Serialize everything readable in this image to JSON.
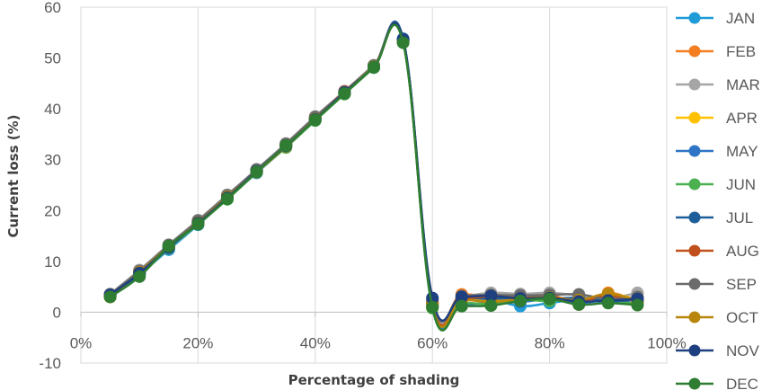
{
  "chart_data": {
    "type": "line",
    "xlabel": "Percentage of shading",
    "ylabel": "Current loss (%)",
    "xlim": [
      0,
      100
    ],
    "ylim": [
      -10,
      60
    ],
    "x_ticks": [
      "0%",
      "20%",
      "40%",
      "60%",
      "80%",
      "100%"
    ],
    "y_ticks": [
      "-10",
      "0",
      "10",
      "20",
      "30",
      "40",
      "50",
      "60"
    ],
    "grid": "vertical",
    "legend": "right",
    "smooth": true,
    "x": [
      5,
      10,
      15,
      20,
      25,
      30,
      35,
      40,
      45,
      50,
      55,
      60,
      65,
      70,
      75,
      80,
      85,
      90,
      95
    ],
    "series": [
      {
        "name": "JAN",
        "color": "#1f9bd7",
        "values": [
          3.5,
          7.5,
          12.3,
          17.2,
          22.3,
          27.5,
          32.6,
          37.8,
          43.0,
          48.3,
          53.6,
          1.0,
          2.2,
          2.5,
          1.2,
          1.8,
          2.5,
          2.0,
          2.6
        ]
      },
      {
        "name": "FEB",
        "color": "#f47d20",
        "values": [
          3.3,
          8.2,
          13.0,
          17.8,
          22.8,
          27.8,
          33.0,
          38.2,
          43.3,
          48.5,
          53.3,
          2.0,
          3.5,
          3.0,
          3.2,
          3.5,
          1.5,
          3.8,
          2.0
        ]
      },
      {
        "name": "MAR",
        "color": "#a5a5a5",
        "values": [
          3.6,
          8.3,
          13.3,
          18.1,
          23.1,
          28.0,
          33.2,
          38.5,
          43.5,
          48.6,
          53.5,
          2.2,
          3.0,
          3.8,
          3.6,
          3.8,
          3.3,
          2.8,
          3.8
        ]
      },
      {
        "name": "APR",
        "color": "#ffc000",
        "values": [
          3.0,
          7.8,
          12.8,
          17.5,
          22.5,
          27.6,
          32.7,
          38.0,
          43.1,
          48.2,
          53.2,
          1.5,
          2.5,
          2.2,
          2.8,
          3.0,
          2.0,
          3.5,
          2.5
        ]
      },
      {
        "name": "MAY",
        "color": "#2e75c5",
        "values": [
          3.2,
          7.6,
          12.5,
          17.4,
          22.4,
          27.4,
          32.5,
          37.9,
          43.0,
          48.4,
          53.7,
          1.2,
          1.5,
          1.8,
          2.0,
          2.5,
          1.8,
          2.5,
          2.8
        ]
      },
      {
        "name": "JUN",
        "color": "#4caf50",
        "values": [
          3.1,
          7.2,
          12.6,
          17.3,
          22.2,
          27.5,
          32.4,
          37.7,
          42.9,
          48.1,
          53.2,
          0.8,
          1.8,
          1.6,
          2.4,
          2.2,
          2.6,
          2.4,
          1.6
        ]
      },
      {
        "name": "JUL",
        "color": "#1f5f99",
        "values": [
          3.4,
          7.4,
          12.7,
          17.6,
          22.6,
          27.7,
          32.8,
          38.1,
          43.2,
          48.2,
          53.8,
          1.6,
          2.8,
          2.6,
          2.9,
          2.7,
          2.8,
          2.2,
          2.4
        ]
      },
      {
        "name": "AUG",
        "color": "#c0501b",
        "values": [
          3.3,
          8.0,
          13.1,
          17.7,
          22.9,
          27.9,
          32.9,
          38.3,
          43.4,
          48.4,
          53.4,
          1.8,
          2.6,
          3.1,
          3.0,
          3.2,
          2.2,
          3.2,
          2.1
        ]
      },
      {
        "name": "SEP",
        "color": "#6b6b6b",
        "values": [
          3.5,
          8.1,
          13.2,
          18.0,
          23.0,
          28.1,
          33.1,
          38.4,
          43.3,
          48.5,
          53.5,
          2.5,
          3.2,
          3.4,
          3.3,
          3.4,
          3.5,
          2.6,
          3.0
        ]
      },
      {
        "name": "OCT",
        "color": "#b8860b",
        "values": [
          3.0,
          7.9,
          12.9,
          17.6,
          22.7,
          27.6,
          32.6,
          38.0,
          43.1,
          48.3,
          53.3,
          1.4,
          2.4,
          2.0,
          2.6,
          2.9,
          2.4,
          3.6,
          2.3
        ]
      },
      {
        "name": "NOV",
        "color": "#1e3f80",
        "values": [
          3.4,
          7.7,
          12.8,
          17.5,
          22.5,
          27.7,
          32.7,
          37.9,
          43.2,
          48.2,
          53.6,
          2.8,
          3.0,
          3.2,
          2.7,
          2.8,
          2.1,
          2.3,
          2.6
        ]
      },
      {
        "name": "DEC",
        "color": "#2e7d32",
        "values": [
          3.0,
          7.0,
          13.0,
          17.3,
          22.3,
          27.6,
          32.8,
          37.8,
          43.0,
          48.2,
          53.0,
          1.0,
          1.2,
          1.3,
          2.2,
          2.6,
          1.5,
          1.8,
          1.4
        ]
      }
    ]
  }
}
